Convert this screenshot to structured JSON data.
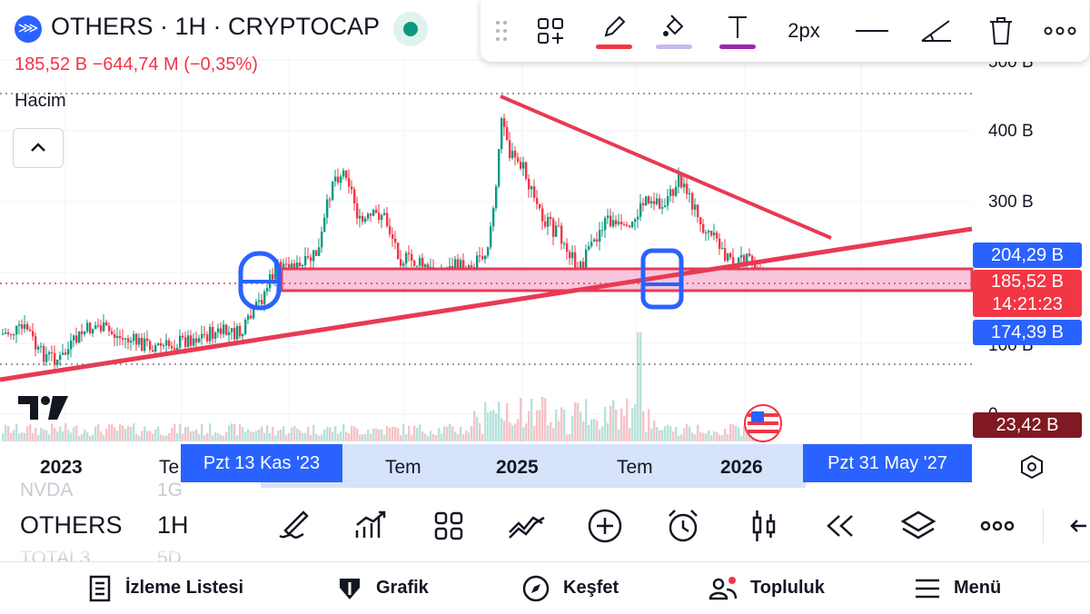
{
  "header": {
    "symbol_line": "OTHERS · 1H · CRYPTOCAP",
    "quote_line": "185,52 B  −644,74 M (−0,35%)",
    "volume_label": "Hacim"
  },
  "drawing_toolbar": {
    "line_width_label": "2px",
    "pen_color": "#f23645",
    "fill_color": "#c9b8f0",
    "text_color": "#9c27b0"
  },
  "price_axis": {
    "ticks": [
      "500 B",
      "400 B",
      "300 B",
      "100 B",
      "0"
    ],
    "badges": {
      "upper": "204,29 B",
      "current": "185,52 B",
      "countdown": "14:21:23",
      "lower": "174,39 B",
      "volume": "23,42 B"
    }
  },
  "time_axis": {
    "labels": [
      "2023",
      "Te",
      "Tem",
      "2025",
      "Tem",
      "2026"
    ],
    "range_start": "Pzt 13 Kas '23",
    "range_end": "Pzt 31 May '27"
  },
  "bottom_toolbar": {
    "symbol": "OTHERS",
    "timeframe": "1H",
    "ghost_symbols": [
      "NVDA",
      "TOTAL3"
    ],
    "ghost_timeframes": [
      "1G",
      "5D"
    ]
  },
  "nav": {
    "items": [
      "İzleme Listesi",
      "Grafik",
      "Keşfet",
      "Topluluk",
      "Menü"
    ]
  },
  "colors": {
    "up": "#089981",
    "down": "#f23645",
    "accent": "#2962ff",
    "trendline": "#e83a53",
    "zone_fill": "#f7c6dd"
  }
}
